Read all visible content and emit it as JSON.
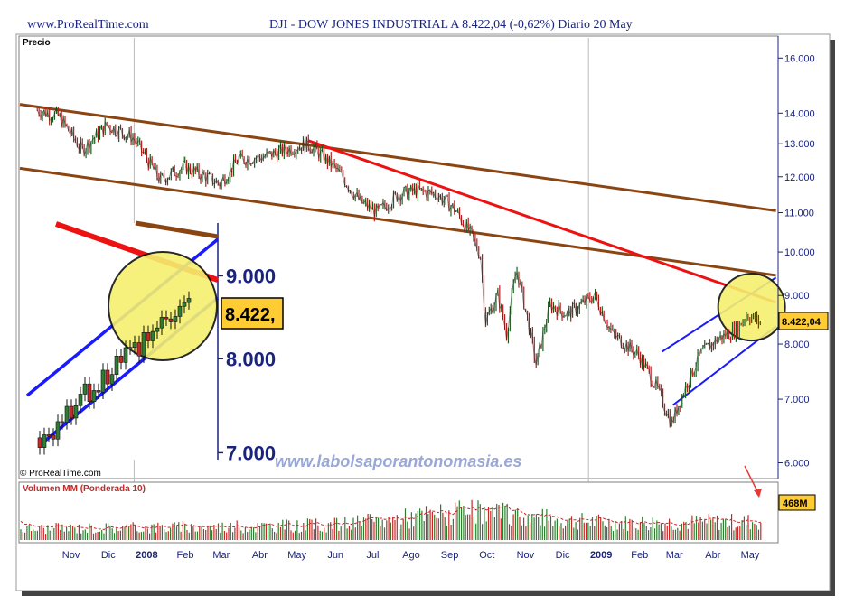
{
  "header": {
    "site": "www.ProRealTime.com",
    "title": "DJI - DOW JONES INDUSTRIAL A    8.422,04 (-0,62%)    Diario  20 May"
  },
  "chart_data": [
    {
      "type": "line",
      "title": "DJI - DOW JONES INDUSTRIAL A",
      "panel_label": "Precio",
      "last_value_label": "8.422,04",
      "y_scale": "log",
      "ylim": [
        5800,
        16800
      ],
      "y_ticks": [
        {
          "value": 16000,
          "label": "16.000"
        },
        {
          "value": 14000,
          "label": "14.000"
        },
        {
          "value": 13000,
          "label": "13.000"
        },
        {
          "value": 12000,
          "label": "12.000"
        },
        {
          "value": 11000,
          "label": "11.000"
        },
        {
          "value": 10000,
          "label": "10.000"
        },
        {
          "value": 9000,
          "label": "9.000"
        },
        {
          "value": 8000,
          "label": "8.000"
        },
        {
          "value": 7000,
          "label": "7.000"
        },
        {
          "value": 6000,
          "label": "6.000"
        }
      ],
      "x_ticks": [
        "Nov",
        "Dic",
        "2008",
        "Feb",
        "Mar",
        "Abr",
        "May",
        "Jun",
        "Jul",
        "Ago",
        "Sep",
        "Oct",
        "Nov",
        "Dic",
        "2009",
        "Feb",
        "Mar",
        "Abr",
        "May"
      ],
      "x": [
        "2007-10-15",
        "2007-11-01",
        "2007-11-20",
        "2007-12-10",
        "2007-12-31",
        "2008-01-22",
        "2008-02-10",
        "2008-03-10",
        "2008-03-25",
        "2008-04-15",
        "2008-05-01",
        "2008-05-20",
        "2008-06-10",
        "2008-07-01",
        "2008-07-15",
        "2008-08-01",
        "2008-08-15",
        "2008-09-01",
        "2008-09-15",
        "2008-09-29",
        "2008-10-06",
        "2008-10-10",
        "2008-10-20",
        "2008-10-27",
        "2008-11-04",
        "2008-11-20",
        "2008-12-01",
        "2008-12-15",
        "2009-01-06",
        "2009-01-20",
        "2009-02-10",
        "2009-02-25",
        "2009-03-09",
        "2009-03-20",
        "2009-04-01",
        "2009-04-15",
        "2009-05-01",
        "2009-05-08",
        "2009-05-20"
      ],
      "series": [
        {
          "values": [
            14100,
            13900,
            12800,
            13600,
            13200,
            11900,
            12300,
            11800,
            12500,
            12600,
            12800,
            13000,
            12300,
            11300,
            11000,
            11500,
            11600,
            11500,
            11100,
            10400,
            9900,
            8450,
            9000,
            8200,
            9600,
            7600,
            8800,
            8600,
            9000,
            8200,
            7800,
            7200,
            6600,
            7200,
            7800,
            8100,
            8300,
            8600,
            8422
          ]
        }
      ],
      "trend_lines": [
        {
          "color": "#8b4513",
          "from": [
            "2007-10-01",
            14300
          ],
          "to": [
            "2009-06-01",
            11050
          ]
        },
        {
          "color": "#8b4513",
          "from": [
            "2007-10-01",
            12250
          ],
          "to": [
            "2009-06-01",
            9450
          ]
        },
        {
          "color": "#ee1111",
          "from": [
            "2008-05-20",
            13100
          ],
          "to": [
            "2009-06-01",
            8850
          ]
        },
        {
          "color": "#1a1aff",
          "from": [
            "2009-03-01",
            7850
          ],
          "to": [
            "2009-06-01",
            9400
          ]
        },
        {
          "color": "#1a1aff",
          "from": [
            "2009-03-10",
            6900
          ],
          "to": [
            "2009-06-01",
            8350
          ]
        }
      ],
      "inset": {
        "y_ticks": [
          {
            "value": 9000,
            "label": "9.000"
          },
          {
            "value": 8000,
            "label": "8.000"
          },
          {
            "value": 7000,
            "label": "7.000"
          }
        ],
        "last_value_label": "8.422,"
      }
    },
    {
      "type": "bar",
      "title": "Volumen MM (Ponderada 10)",
      "last_value_label": "468M"
    }
  ],
  "watermarks": {
    "url": "www.labolsaporantonomasia.es",
    "copyright": "© ProRealTime.com"
  },
  "colors": {
    "axis": "#1a237e",
    "brown_trend": "#8b4513",
    "red_trend": "#ee1111",
    "blue_channel": "#1a1aff",
    "highlight_circle": "#f5f06e",
    "price_label_bg": "#ffcc33",
    "volume_up": "#2e7d32",
    "volume_down": "#c62828"
  }
}
